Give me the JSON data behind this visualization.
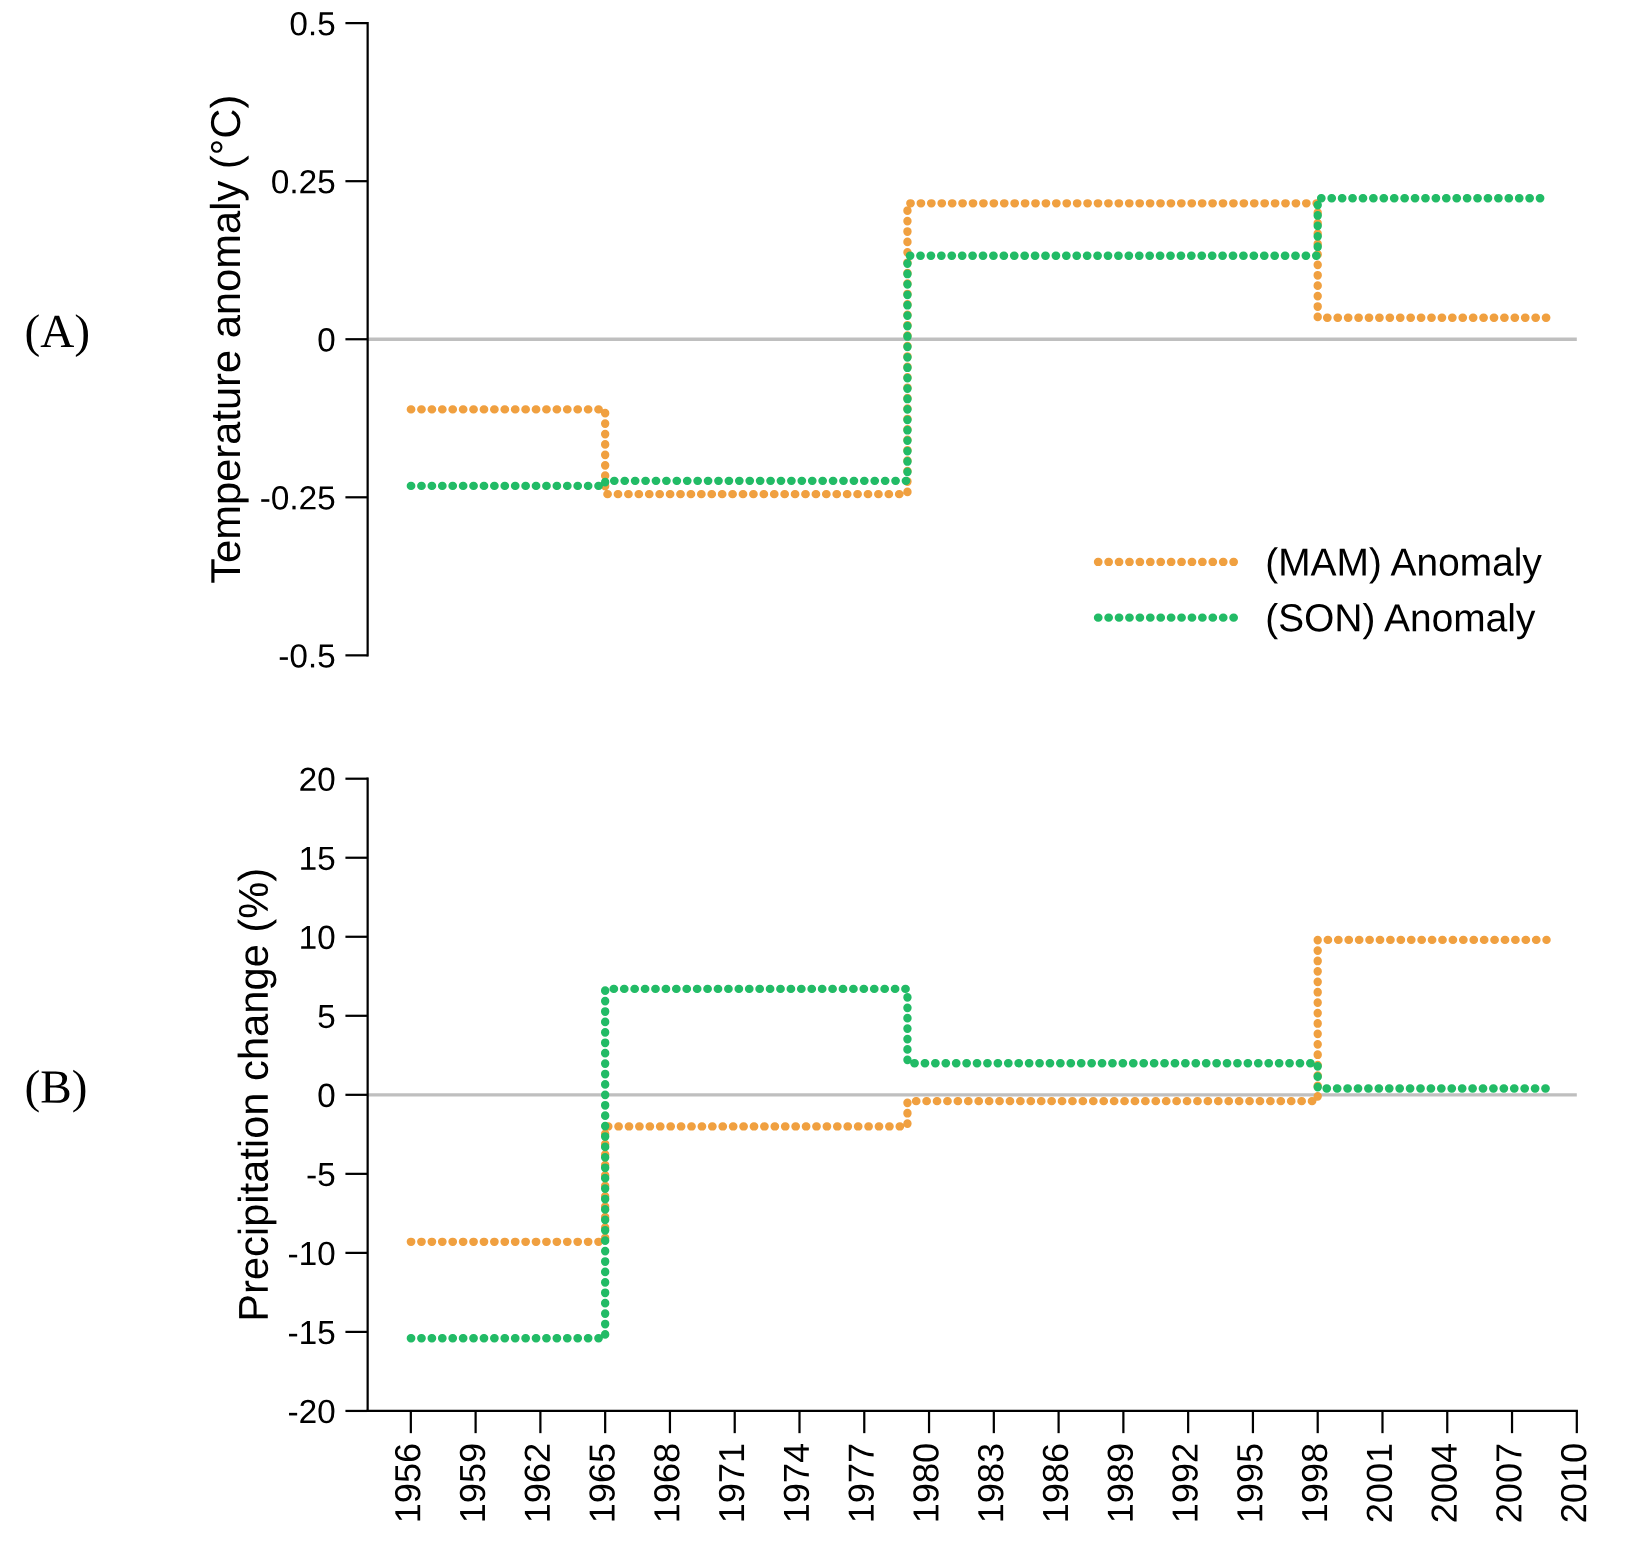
{
  "chart_data": [
    {
      "type": "step",
      "ylabel": "Temperature anomaly (°C)",
      "annotations": [
        "(A)"
      ],
      "xlim": [
        1954,
        2010
      ],
      "xticks": [
        1956,
        1959,
        1962,
        1965,
        1968,
        1971,
        1974,
        1977,
        1980,
        1983,
        1986,
        1989,
        1992,
        1995,
        1998,
        2001,
        2004,
        2007,
        2010
      ],
      "ylim": [
        -0.5,
        0.5
      ],
      "yticks": [
        -0.5,
        -0.25,
        0,
        0.25,
        0.5
      ],
      "tick_labels": "y",
      "grid": false,
      "legend": "bottom right",
      "line_style": "dotted",
      "marker": "none",
      "ref_lines": [
        {
          "axis": "y",
          "value": 0,
          "label": null,
          "color": "#bfbfbf",
          "line_style": "solid"
        }
      ],
      "series": [
        {
          "name": "(MAM) Anomaly",
          "color": "#f0a040",
          "x": [
            1956,
            1965,
            1979,
            1998,
            2008.6
          ],
          "values": [
            -0.111,
            -0.245,
            0.215,
            0.034,
            0.034
          ]
        },
        {
          "name": "(SON) Anomaly",
          "color": "#22bb66",
          "x": [
            1956,
            1965,
            1979,
            1998,
            2008.6
          ],
          "values": [
            -0.232,
            -0.224,
            0.132,
            0.223,
            0.223
          ]
        }
      ]
    },
    {
      "type": "step",
      "ylabel": "Precipitation change (%)",
      "annotations": [
        "(B)"
      ],
      "xlim": [
        1954,
        2010
      ],
      "xticks": [
        1956,
        1959,
        1962,
        1965,
        1968,
        1971,
        1974,
        1977,
        1980,
        1983,
        1986,
        1989,
        1992,
        1995,
        1998,
        2001,
        2004,
        2007,
        2010
      ],
      "ylim": [
        -20,
        20
      ],
      "yticks": [
        -20,
        -15,
        -10,
        -5,
        0,
        5,
        10,
        15,
        20
      ],
      "grid": false,
      "line_style": "dotted",
      "marker": "none",
      "ref_lines": [
        {
          "axis": "y",
          "value": 0,
          "label": null,
          "color": "#bfbfbf",
          "line_style": "solid"
        }
      ],
      "series": [
        {
          "color": "#f0a040",
          "x": [
            1956,
            1965,
            1979,
            1998,
            2008.6
          ],
          "values": [
            -9.3,
            -2.0,
            -0.4,
            9.8,
            9.8
          ]
        },
        {
          "color": "#22bb66",
          "x": [
            1956,
            1965,
            1979,
            1998,
            2008.6
          ],
          "values": [
            -15.4,
            6.7,
            2.0,
            0.4,
            0.4
          ]
        }
      ]
    }
  ]
}
